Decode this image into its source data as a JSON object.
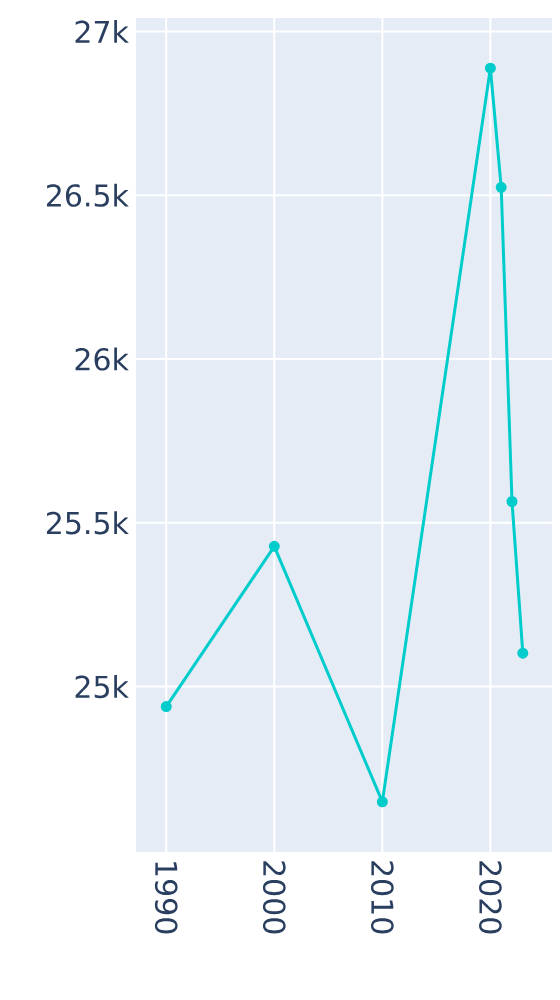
{
  "chart_data": {
    "type": "line",
    "x": [
      1990,
      2000,
      2010,
      2020,
      2021,
      2022,
      2023
    ],
    "series": [
      {
        "color": "#00cccc",
        "values": [
          24939,
          25428,
          24648,
          26888,
          26524,
          25565,
          25102
        ]
      }
    ],
    "xlim": [
      1987.2,
      2025.7
    ],
    "ylim": [
      24495,
      27041
    ],
    "xticks": [
      1990,
      2000,
      2010,
      2020
    ],
    "yticks": [
      {
        "value": 25000,
        "label": "25k"
      },
      {
        "value": 25500,
        "label": "25.5k"
      },
      {
        "value": 26000,
        "label": "26k"
      },
      {
        "value": 26500,
        "label": "26.5k"
      },
      {
        "value": 27000,
        "label": "27k"
      }
    ],
    "grid": true,
    "marker": "circle"
  }
}
